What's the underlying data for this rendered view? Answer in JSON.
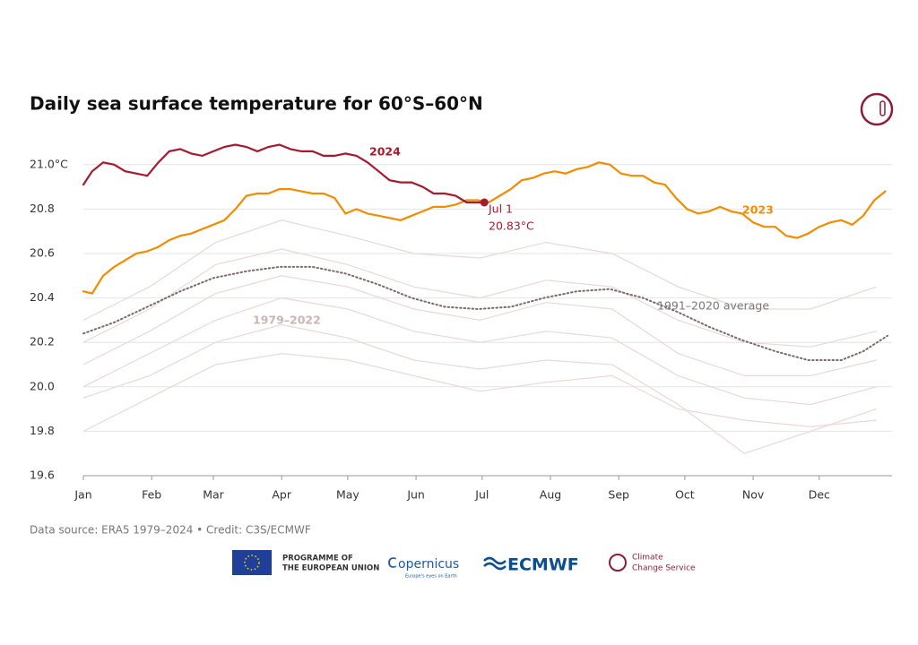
{
  "chart_data": {
    "type": "line",
    "title": "Daily sea surface temperature for 60°S–60°N",
    "xlim": [
      1,
      366
    ],
    "xticks": [
      {
        "value": 1,
        "label": "Jan"
      },
      {
        "value": 32,
        "label": "Feb"
      },
      {
        "value": 60,
        "label": "Mar"
      },
      {
        "value": 91,
        "label": "Apr"
      },
      {
        "value": 121,
        "label": "May"
      },
      {
        "value": 152,
        "label": "Jun"
      },
      {
        "value": 182,
        "label": "Jul"
      },
      {
        "value": 213,
        "label": "Aug"
      },
      {
        "value": 244,
        "label": "Sep"
      },
      {
        "value": 274,
        "label": "Oct"
      },
      {
        "value": 305,
        "label": "Nov"
      },
      {
        "value": 335,
        "label": "Dec"
      }
    ],
    "ylim": [
      19.6,
      21.1
    ],
    "yticks": [
      19.6,
      19.8,
      {
        "value": 20,
        "label": "20.0"
      },
      20.2,
      20.4,
      20.6,
      20.8,
      {
        "value": 21,
        "label": "21.0°C"
      }
    ],
    "grid": true,
    "background": {
      "label": "1979–2022",
      "color": "#e9d8d6",
      "x": [
        1,
        31,
        61,
        91,
        121,
        151,
        181,
        211,
        241,
        271,
        301,
        331,
        361
      ],
      "lines": [
        [
          19.8,
          19.95,
          20.1,
          20.15,
          20.12,
          20.05,
          19.98,
          20.02,
          20.05,
          19.9,
          19.85,
          19.82,
          19.85
        ],
        [
          20.0,
          20.15,
          20.3,
          20.4,
          20.35,
          20.25,
          20.2,
          20.25,
          20.22,
          20.05,
          19.95,
          19.92,
          20.0
        ],
        [
          20.1,
          20.25,
          20.42,
          20.5,
          20.45,
          20.35,
          20.3,
          20.38,
          20.35,
          20.15,
          20.05,
          20.05,
          20.12
        ],
        [
          20.2,
          20.35,
          20.55,
          20.62,
          20.55,
          20.45,
          20.4,
          20.48,
          20.45,
          20.3,
          20.2,
          20.18,
          20.25
        ],
        [
          20.3,
          20.45,
          20.65,
          20.75,
          20.68,
          20.6,
          20.58,
          20.65,
          20.6,
          20.45,
          20.35,
          20.35,
          20.45
        ],
        [
          19.95,
          20.05,
          20.2,
          20.28,
          20.22,
          20.12,
          20.08,
          20.12,
          20.1,
          19.92,
          19.7,
          19.8,
          19.9
        ]
      ]
    },
    "series": [
      {
        "name": "1991–2020 average",
        "color": "#7a6a6a",
        "dotted": true,
        "x": [
          1,
          15,
          30,
          45,
          60,
          75,
          90,
          105,
          120,
          135,
          150,
          165,
          180,
          195,
          210,
          225,
          240,
          255,
          270,
          285,
          300,
          315,
          330,
          345,
          355,
          366
        ],
        "values": [
          20.24,
          20.29,
          20.36,
          20.43,
          20.49,
          20.52,
          20.54,
          20.54,
          20.51,
          20.46,
          20.4,
          20.36,
          20.35,
          20.36,
          20.4,
          20.43,
          20.44,
          20.4,
          20.34,
          20.27,
          20.21,
          20.16,
          20.12,
          20.12,
          20.16,
          20.23
        ]
      },
      {
        "name": "2023",
        "color": "#f28c00",
        "x": [
          1,
          5,
          10,
          15,
          20,
          25,
          30,
          35,
          40,
          45,
          50,
          55,
          60,
          65,
          70,
          75,
          80,
          85,
          90,
          95,
          100,
          105,
          110,
          115,
          120,
          125,
          130,
          135,
          140,
          145,
          150,
          155,
          160,
          165,
          170,
          175,
          180,
          185,
          190,
          195,
          200,
          205,
          210,
          215,
          220,
          225,
          230,
          235,
          240,
          245,
          250,
          255,
          260,
          265,
          270,
          275,
          280,
          285,
          290,
          295,
          300,
          305,
          310,
          315,
          320,
          325,
          330,
          335,
          340,
          345,
          350,
          355,
          360,
          365
        ],
        "values": [
          20.43,
          20.42,
          20.5,
          20.54,
          20.57,
          20.6,
          20.61,
          20.63,
          20.66,
          20.68,
          20.69,
          20.71,
          20.73,
          20.75,
          20.8,
          20.86,
          20.87,
          20.87,
          20.89,
          20.89,
          20.88,
          20.87,
          20.87,
          20.85,
          20.78,
          20.8,
          20.78,
          20.77,
          20.76,
          20.75,
          20.77,
          20.79,
          20.81,
          20.81,
          20.82,
          20.84,
          20.84,
          20.83,
          20.86,
          20.89,
          20.93,
          20.94,
          20.96,
          20.97,
          20.96,
          20.98,
          20.99,
          21.01,
          21.0,
          20.96,
          20.95,
          20.95,
          20.92,
          20.91,
          20.85,
          20.8,
          20.78,
          20.79,
          20.81,
          20.79,
          20.78,
          20.74,
          20.72,
          20.72,
          20.68,
          20.67,
          20.69,
          20.72,
          20.74,
          20.75,
          20.73,
          20.77,
          20.84,
          20.88
        ]
      },
      {
        "name": "2024",
        "color": "#a6192e",
        "x": [
          1,
          5,
          10,
          15,
          20,
          25,
          30,
          35,
          40,
          45,
          50,
          55,
          60,
          65,
          70,
          75,
          80,
          85,
          90,
          95,
          100,
          105,
          110,
          115,
          120,
          125,
          130,
          135,
          140,
          145,
          150,
          155,
          160,
          165,
          170,
          175,
          180,
          183
        ],
        "values": [
          20.91,
          20.97,
          21.01,
          21.0,
          20.97,
          20.96,
          20.95,
          21.01,
          21.06,
          21.07,
          21.05,
          21.04,
          21.06,
          21.08,
          21.09,
          21.08,
          21.06,
          21.08,
          21.09,
          21.07,
          21.06,
          21.06,
          21.04,
          21.04,
          21.05,
          21.04,
          21.01,
          20.97,
          20.93,
          20.92,
          20.92,
          20.9,
          20.87,
          20.87,
          20.86,
          20.83,
          20.83,
          20.83
        ]
      }
    ],
    "highlight": {
      "x": 183,
      "value": 20.83,
      "date": "Jul 1",
      "label": "20.83°C"
    },
    "source": "Data source: ERA5 1979–2024 • Credit: C3S/ECMWF"
  },
  "footer": {
    "eu": "PROGRAMME OF",
    "eu2": "THE EUROPEAN UNION",
    "copernicus": "opernicus",
    "copernicus_sub": "Europe's eyes on Earth",
    "ecmwf": "ECMWF",
    "c3s": "Climate",
    "c3s2": "Change Service"
  }
}
